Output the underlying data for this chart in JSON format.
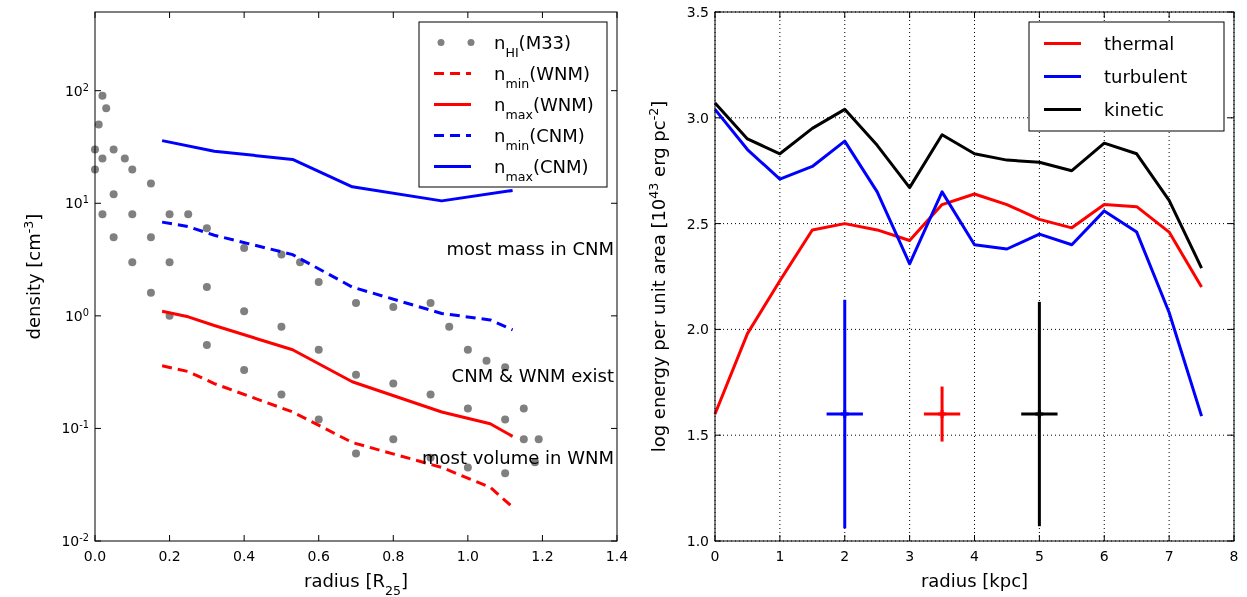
{
  "chart_data": [
    {
      "type": "line",
      "xlabel": "radius [R$_{25}$]",
      "ylabel": "density [cm$^{-3}$]",
      "log": "y",
      "xlim": [
        0,
        1.4
      ],
      "ylim": [
        0.01,
        500
      ],
      "xticks": [
        {
          "value": 0,
          "label": "0.0"
        },
        {
          "value": 0.2,
          "label": "0.2"
        },
        {
          "value": 0.4,
          "label": "0.4"
        },
        {
          "value": 0.6,
          "label": "0.6"
        },
        {
          "value": 0.8,
          "label": "0.8"
        },
        {
          "value": 1,
          "label": "1.0"
        },
        {
          "value": 1.2,
          "label": "1.2"
        },
        {
          "value": 1.4,
          "label": "1.4"
        }
      ],
      "yticks": [
        {
          "value": 0.01,
          "label": "10$^{-2}$"
        },
        {
          "value": 0.1,
          "label": "10$^{-1}$"
        },
        {
          "value": 1,
          "label": "10$^{0}$"
        },
        {
          "value": 10,
          "label": "10$^{1}$"
        },
        {
          "value": 100,
          "label": "10$^{2}$"
        }
      ],
      "legend": "top right",
      "annotations": [
        "most mass in CNM",
        "CNM & WNM exist",
        "most volume in WNM"
      ],
      "x": [
        0.18,
        0.25,
        0.32,
        0.53,
        0.69,
        0.93,
        1.06,
        1.12
      ],
      "series": [
        {
          "type": "scatter",
          "name": "n$_{HI}$(M33)",
          "color": "#808080",
          "marker": "circle",
          "x": [
            0.0,
            0.01,
            0.02,
            0.03,
            0.05,
            0.08,
            0.1,
            0.15,
            0.2,
            0.25,
            0.3,
            0.4,
            0.5,
            0.55,
            0.6,
            0.7,
            0.8,
            0.9,
            0.95,
            1.0,
            1.05,
            1.1,
            1.15,
            1.19,
            0.0,
            0.02,
            0.05,
            0.1,
            0.15,
            0.2,
            0.3,
            0.4,
            0.5,
            0.6,
            0.7,
            0.8,
            0.9,
            1.0,
            1.1,
            1.18,
            0.02,
            0.05,
            0.1,
            0.15,
            0.2,
            0.3,
            0.4,
            0.5,
            0.6,
            0.7,
            0.8,
            0.9,
            1.0,
            1.1,
            1.15
          ],
          "values": [
            30,
            50,
            90,
            70,
            30,
            25,
            20,
            15,
            8,
            8,
            6,
            4,
            3.5,
            3,
            2,
            1.3,
            1.2,
            1.3,
            0.8,
            0.5,
            0.4,
            0.35,
            0.15,
            0.08,
            20,
            8,
            5,
            3,
            1.6,
            1,
            0.55,
            0.33,
            0.2,
            0.12,
            0.06,
            0.08,
            0.055,
            0.045,
            0.04,
            0.05,
            25,
            12,
            8,
            5,
            3,
            1.8,
            1.1,
            0.8,
            0.5,
            0.3,
            0.25,
            0.2,
            0.15,
            0.12,
            0.08
          ]
        },
        {
          "name": "n$_{min}$(WNM)",
          "color": "#ff0000",
          "line_style": "dashed",
          "values": [
            0.36,
            0.32,
            0.25,
            0.14,
            0.075,
            0.045,
            0.03,
            0.02
          ]
        },
        {
          "name": "n$_{max}$(WNM)",
          "color": "#ff0000",
          "line_style": "solid",
          "values": [
            1.1,
            0.98,
            0.82,
            0.5,
            0.26,
            0.14,
            0.11,
            0.085
          ]
        },
        {
          "name": "n$_{min}$(CNM)",
          "color": "#0000ff",
          "line_style": "dashed",
          "values": [
            6.8,
            6.2,
            5.2,
            3.5,
            1.8,
            1.05,
            0.92,
            0.75
          ]
        },
        {
          "name": "n$_{max}$(CNM)",
          "color": "#0000ff",
          "line_style": "solid",
          "x": [
            0.18,
            0.32,
            0.53,
            0.69,
            0.93,
            1.12
          ],
          "values": [
            36,
            29,
            24.5,
            14,
            10.5,
            13
          ]
        }
      ]
    },
    {
      "type": "line",
      "xlabel": "radius [kpc]",
      "ylabel": "log energy per unit area [10$^{43}$ erg pc$^{-2}$]",
      "xlim": [
        0,
        8
      ],
      "ylim": [
        1,
        3.5
      ],
      "xticks": [
        0,
        1,
        2,
        3,
        4,
        5,
        6,
        7,
        8
      ],
      "yticks": [
        {
          "value": 1,
          "label": "1.0"
        },
        {
          "value": 1.5,
          "label": "1.5"
        },
        {
          "value": 2,
          "label": "2.0"
        },
        {
          "value": 2.5,
          "label": "2.5"
        },
        {
          "value": 3,
          "label": "3.0"
        },
        {
          "value": 3.5,
          "label": "3.5"
        }
      ],
      "grid": true,
      "legend": "top right",
      "x": [
        0,
        0.5,
        1,
        1.5,
        2,
        2.5,
        3,
        3.5,
        4,
        4.5,
        5,
        5.5,
        6,
        6.5,
        7,
        7.5
      ],
      "series": [
        {
          "name": "thermal",
          "color": "#ff0000",
          "values": [
            1.6,
            1.98,
            2.23,
            2.47,
            2.5,
            2.47,
            2.42,
            2.59,
            2.64,
            2.59,
            2.52,
            2.48,
            2.59,
            2.58,
            2.46,
            2.2
          ]
        },
        {
          "name": "turbulent",
          "color": "#0000ff",
          "values": [
            3.04,
            2.85,
            2.71,
            2.77,
            2.89,
            2.65,
            2.31,
            2.65,
            2.4,
            2.38,
            2.45,
            2.4,
            2.56,
            2.46,
            2.08,
            1.59
          ]
        },
        {
          "name": "kinetic",
          "color": "#000000",
          "values": [
            3.07,
            2.9,
            2.83,
            2.95,
            3.04,
            2.87,
            2.67,
            2.92,
            2.83,
            2.8,
            2.79,
            2.75,
            2.88,
            2.83,
            2.61,
            2.29
          ]
        },
        {
          "type": "scatter",
          "color": "#0000ff",
          "marker": "cross",
          "x": [
            2
          ],
          "values": [
            1.6
          ],
          "errors": [
            [
              1.06,
              2.14
            ]
          ],
          "xerrors": [
            0.28
          ]
        },
        {
          "type": "scatter",
          "color": "#ff0000",
          "marker": "cross",
          "x": [
            3.5
          ],
          "values": [
            1.6
          ],
          "errors": [
            [
              1.47,
              1.73
            ]
          ],
          "xerrors": [
            0.28
          ]
        },
        {
          "type": "scatter",
          "color": "#000000",
          "marker": "cross",
          "x": [
            5
          ],
          "values": [
            1.6
          ],
          "errors": [
            [
              1.07,
              2.13
            ]
          ],
          "xerrors": [
            0.28
          ]
        }
      ]
    }
  ]
}
